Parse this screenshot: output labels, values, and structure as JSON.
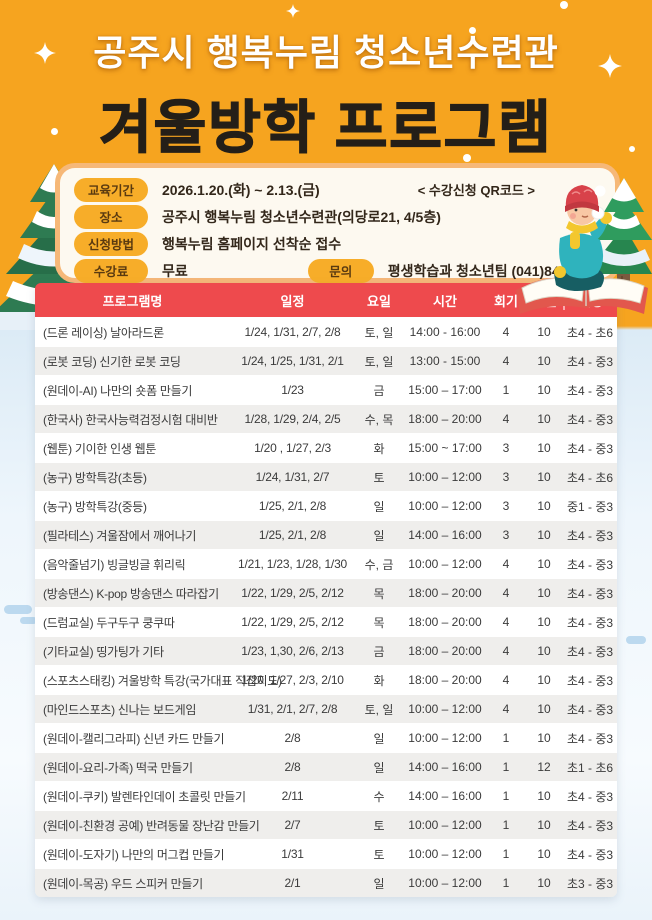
{
  "poster": {
    "title_line1": "공주시 행복누림 청소년수련관",
    "title_line2": "겨울방학 프로그램"
  },
  "info": {
    "qr_note": "< 수강신청 QR코드 >",
    "period_label": "교육기간",
    "period_value": "2026.1.20.(화) ~ 2.13.(금)",
    "place_label": "장소",
    "place_value": "공주시 행복누림 청소년수련관(의당로21, 4/5층)",
    "apply_label": "신청방법",
    "apply_value": "행복누림 홈페이지 선착순 접수",
    "fee_label": "수강료",
    "fee_value": "무료",
    "contact_label": "문의",
    "contact_value": "평생학습과 청소년팀 (041)840-8070"
  },
  "table": {
    "headers": [
      "프로그램명",
      "일정",
      "요일",
      "시간",
      "회기",
      "인원",
      "대상"
    ],
    "rows": [
      [
        "(드론 레이싱) 날아라드론",
        "1/24, 1/31, 2/7, 2/8",
        "토, 일",
        "14:00 - 16:00",
        "4",
        "10",
        "초4 - 초6"
      ],
      [
        "(로봇 코딩) 신기한 로봇 코딩",
        "1/24, 1/25, 1/31, 2/1",
        "토, 일",
        "13:00 - 15:00",
        "4",
        "10",
        "초4 - 중3"
      ],
      [
        "(원데이-AI) 나만의 숏폼 만들기",
        "1/23",
        "금",
        "15:00 – 17:00",
        "1",
        "10",
        "초4 - 중3"
      ],
      [
        "(한국사) 한국사능력검정시험 대비반",
        "1/28, 1/29, 2/4, 2/5",
        "수, 목",
        "18:00 – 20:00",
        "4",
        "10",
        "초4 - 중3"
      ],
      [
        "(웹툰) 기이한 인생 웹툰",
        "1/20 , 1/27, 2/3",
        "화",
        "15:00 ~ 17:00",
        "3",
        "10",
        "초4 - 중3"
      ],
      [
        "(농구) 방학특강(초등)",
        "1/24, 1/31, 2/7",
        "토",
        "10:00 – 12:00",
        "3",
        "10",
        "초4 - 초6"
      ],
      [
        "(농구) 방학특강(중등)",
        "1/25, 2/1, 2/8",
        "일",
        "10:00 – 12:00",
        "3",
        "10",
        "중1 - 중3"
      ],
      [
        "(필라테스) 겨울잠에서 깨어나기",
        "1/25, 2/1, 2/8",
        "일",
        "14:00 – 16:00",
        "3",
        "10",
        "초4 - 중3"
      ],
      [
        "(음악줄넘기) 빙글빙글 휘리릭",
        "1/21, 1/23, 1/28, 1/30",
        "수, 금",
        "10:00 – 12:00",
        "4",
        "10",
        "초4 - 중3"
      ],
      [
        "(방송댄스) K-pop 방송댄스 따라잡기",
        "1/22, 1/29, 2/5, 2/12",
        "목",
        "18:00 – 20:00",
        "4",
        "10",
        "초4 - 중3"
      ],
      [
        "(드럼교실) 두구두구 쿵쿠따",
        "1/22, 1/29, 2/5, 2/12",
        "목",
        "18:00 – 20:00",
        "4",
        "10",
        "초4 - 중3"
      ],
      [
        "(기타교실) 띵가팅가 기타",
        "1/23, 1,30, 2/6, 2/13",
        "금",
        "18:00 – 20:00",
        "4",
        "10",
        "초4 - 중3"
      ],
      [
        "(스포츠스태킹) 겨울방학 특강(국가대표 직접지도)",
        "1/20, 1/27, 2/3, 2/10",
        "화",
        "18:00 – 20:00",
        "4",
        "10",
        "초4 - 중3"
      ],
      [
        "(마인드스포츠) 신나는 보드게임",
        "1/31, 2/1, 2/7, 2/8",
        "토, 일",
        "10:00 – 12:00",
        "4",
        "10",
        "초4 - 중3"
      ],
      [
        "(원데이-캘리그라피) 신년 카드 만들기",
        "2/8",
        "일",
        "10:00 – 12:00",
        "1",
        "10",
        "초4 - 중3"
      ],
      [
        "(원데이-요리-가족) 떡국 만들기",
        "2/8",
        "일",
        "14:00 – 16:00",
        "1",
        "12",
        "초1 - 초6"
      ],
      [
        "(원데이-쿠키) 발렌타인데이 초콜릿 만들기",
        "2/11",
        "수",
        "14:00 – 16:00",
        "1",
        "10",
        "초4 - 중3"
      ],
      [
        "(원데이-친환경 공예) 반려동물 장난감 만들기",
        "2/7",
        "토",
        "10:00 – 12:00",
        "1",
        "10",
        "초4 - 중3"
      ],
      [
        "(원데이-도자기) 나만의 머그컵 만들기",
        "1/31",
        "토",
        "10:00 – 12:00",
        "1",
        "10",
        "초4 - 중3"
      ],
      [
        "(원데이-목공) 우드 스피커 만들기",
        "2/1",
        "일",
        "10:00 – 12:00",
        "1",
        "10",
        "초3 - 중3"
      ]
    ],
    "cell_names": [
      "program-name",
      "schedule",
      "day",
      "time",
      "sessions",
      "capacity",
      "target"
    ]
  },
  "colors": {
    "background_orange": "#f6a41f",
    "background_winter": "#eef6fc",
    "table_header_red": "#ee4a4d",
    "row_alt_gray": "#efeeec",
    "panel_border": "#f6b878",
    "panel_bg": "#fdf9f0",
    "pill_bg": "#f7ad29",
    "pill_text": "#5a3a10",
    "title_dark": "#241f18",
    "tree_green": "#2e7b52"
  }
}
